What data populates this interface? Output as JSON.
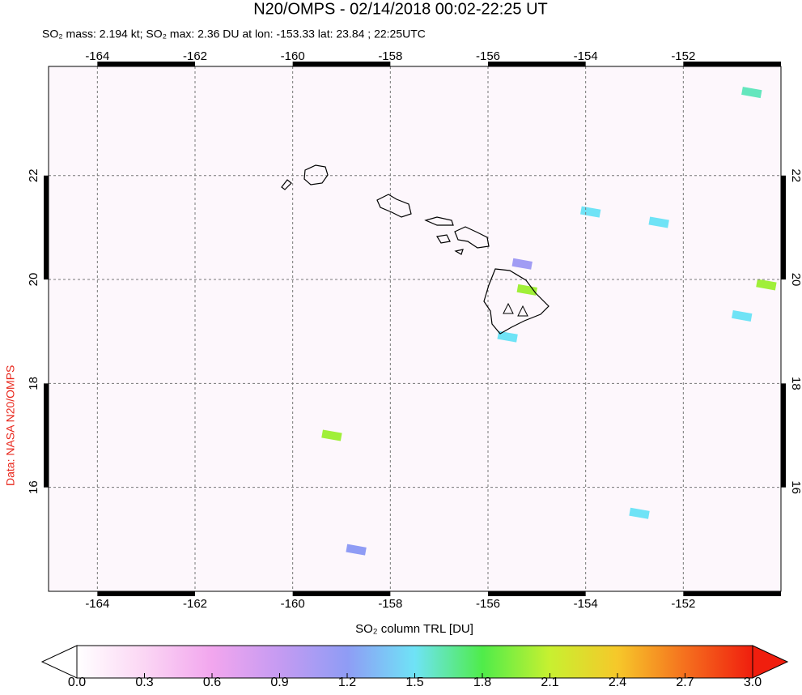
{
  "chart_data": {
    "type": "map",
    "title": "N20/OMPS - 02/14/2018 00:02-22:25 UT",
    "subtitle": "SO₂ mass: 2.194 kt; SO₂ max: 2.36 DU at lon: -153.33 lat: 23.84 ; 22:25UTC",
    "credit": "Data: NASA N20/OMPS",
    "xlim": [
      -165,
      -150
    ],
    "xticks": [
      -164,
      -162,
      -160,
      -158,
      -156,
      -154,
      -152
    ],
    "ylim": [
      14,
      24.1
    ],
    "yticks": [
      16,
      18,
      20,
      22
    ],
    "grid": true,
    "colorbar_label": "SO₂ column TRL [DU]",
    "colorbar_ticks": [
      {
        "value": 0,
        "label": "0.0"
      },
      0.3,
      0.6,
      0.9,
      1.2,
      1.5,
      1.8,
      2.1,
      2.4,
      2.7,
      {
        "value": 3,
        "label": "3.0"
      }
    ],
    "colormap": [
      "#ffffff",
      "#fbd6f4",
      "#f2a6ee",
      "#c59bf2",
      "#8f9cf5",
      "#6fe3f6",
      "#4fec4a",
      "#c8f030",
      "#f6c82a",
      "#f5701e",
      "#f01e0e"
    ],
    "pixels": [
      {
        "lon": -155.2,
        "lat": 19.8,
        "value": 2.0
      },
      {
        "lon": -159.2,
        "lat": 17.0,
        "value": 2.0
      },
      {
        "lon": -150.3,
        "lat": 19.9,
        "value": 2.0
      },
      {
        "lon": -150.6,
        "lat": 23.6,
        "value": 1.6
      },
      {
        "lon": -152.5,
        "lat": 21.1,
        "value": 1.5
      },
      {
        "lon": -150.8,
        "lat": 19.3,
        "value": 1.5
      },
      {
        "lon": -155.3,
        "lat": 20.3,
        "value": 1.1
      },
      {
        "lon": -155.6,
        "lat": 18.9,
        "value": 1.5
      },
      {
        "lon": -152.9,
        "lat": 15.5,
        "value": 1.5
      },
      {
        "lon": -153.9,
        "lat": 21.3,
        "value": 1.5
      },
      {
        "lon": -158.7,
        "lat": 14.8,
        "value": 1.2
      }
    ]
  }
}
